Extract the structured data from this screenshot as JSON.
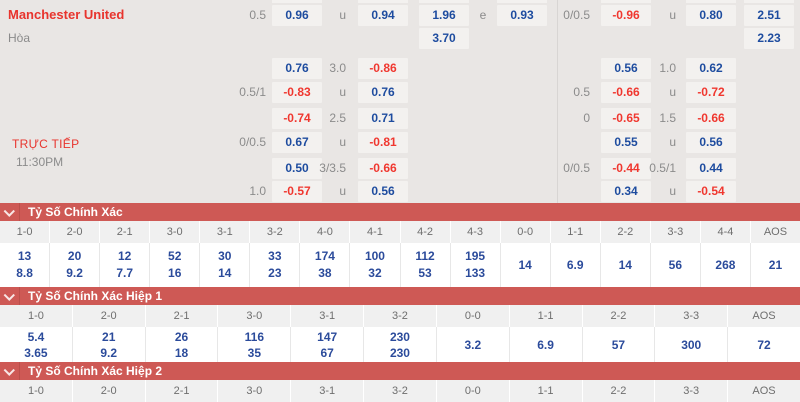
{
  "colors": {
    "blue": "#1e4c9f",
    "red": "#f0372f",
    "gray": "#8b8b8b",
    "banner_red": "#ce5955",
    "team_red": "#e8342d",
    "cell_bg": "#f3f1ef",
    "panel_bg": "#e9e6e4",
    "score_blue": "#2b4b9b"
  },
  "match": {
    "home_team": "Manchester United",
    "draw_label": "Hòa",
    "live_label": "TRỰC TIẾP",
    "start_time": "11:30PM"
  },
  "icons": {
    "banner_icon": "chevron-down-icon"
  },
  "odds": {
    "top_sliver_cols": [
      "c1",
      "c2",
      "c3",
      "c4",
      "c5",
      "c6",
      "c7"
    ],
    "rows": [
      {
        "cells": [
          {
            "col": "h1",
            "text": "0.5",
            "style": "gray"
          },
          {
            "col": "c1",
            "text": "0.96",
            "style": "blue"
          },
          {
            "col": "h2",
            "text": "u",
            "style": "gray"
          },
          {
            "col": "c2",
            "text": "0.94",
            "style": "blue"
          },
          {
            "col": "c3",
            "text": "1.96",
            "style": "blue"
          },
          {
            "col": "e",
            "text": "e",
            "style": "gray"
          },
          {
            "col": "c4",
            "text": "0.93",
            "style": "blue"
          },
          {
            "col": "h3",
            "text": "0/0.5",
            "style": "gray"
          },
          {
            "col": "c5",
            "text": "-0.96",
            "style": "red"
          },
          {
            "col": "h4",
            "text": "u",
            "style": "gray"
          },
          {
            "col": "c6",
            "text": "0.80",
            "style": "blue"
          },
          {
            "col": "c7",
            "text": "2.51",
            "style": "blue"
          }
        ]
      },
      {
        "cells": [
          {
            "col": "c3",
            "text": "3.70",
            "style": "blue"
          },
          {
            "col": "c7",
            "text": "2.23",
            "style": "blue"
          }
        ]
      },
      {
        "cells": [
          {
            "col": "c1",
            "text": "0.76",
            "style": "blue"
          },
          {
            "col": "h2",
            "text": "3.0",
            "style": "gray"
          },
          {
            "col": "c2",
            "text": "-0.86",
            "style": "red"
          },
          {
            "col": "c5",
            "text": "0.56",
            "style": "blue"
          },
          {
            "col": "h4",
            "text": "1.0",
            "style": "gray"
          },
          {
            "col": "c6",
            "text": "0.62",
            "style": "blue"
          }
        ]
      },
      {
        "cells": [
          {
            "col": "h1",
            "text": "0.5/1",
            "style": "gray"
          },
          {
            "col": "c1",
            "text": "-0.83",
            "style": "red"
          },
          {
            "col": "h2",
            "text": "u",
            "style": "gray"
          },
          {
            "col": "c2",
            "text": "0.76",
            "style": "blue"
          },
          {
            "col": "h3",
            "text": "0.5",
            "style": "gray"
          },
          {
            "col": "c5",
            "text": "-0.66",
            "style": "red"
          },
          {
            "col": "h4",
            "text": "u",
            "style": "gray"
          },
          {
            "col": "c6",
            "text": "-0.72",
            "style": "red"
          }
        ]
      },
      {
        "cells": [
          {
            "col": "c1",
            "text": "-0.74",
            "style": "red"
          },
          {
            "col": "h2",
            "text": "2.5",
            "style": "gray"
          },
          {
            "col": "c2",
            "text": "0.71",
            "style": "blue"
          },
          {
            "col": "h3",
            "text": "0",
            "style": "gray"
          },
          {
            "col": "c5",
            "text": "-0.65",
            "style": "red"
          },
          {
            "col": "h4",
            "text": "1.5",
            "style": "gray"
          },
          {
            "col": "c6",
            "text": "-0.66",
            "style": "red"
          }
        ]
      },
      {
        "cells": [
          {
            "col": "h1",
            "text": "0/0.5",
            "style": "gray"
          },
          {
            "col": "c1",
            "text": "0.67",
            "style": "blue"
          },
          {
            "col": "h2",
            "text": "u",
            "style": "gray"
          },
          {
            "col": "c2",
            "text": "-0.81",
            "style": "red"
          },
          {
            "col": "c5",
            "text": "0.55",
            "style": "blue"
          },
          {
            "col": "h4",
            "text": "u",
            "style": "gray"
          },
          {
            "col": "c6",
            "text": "0.56",
            "style": "blue"
          }
        ]
      },
      {
        "cells": [
          {
            "col": "c1",
            "text": "0.50",
            "style": "blue"
          },
          {
            "col": "h2",
            "text": "3/3.5",
            "style": "gray"
          },
          {
            "col": "c2",
            "text": "-0.66",
            "style": "red"
          },
          {
            "col": "h3",
            "text": "0/0.5",
            "style": "gray"
          },
          {
            "col": "c5",
            "text": "-0.44",
            "style": "red"
          },
          {
            "col": "h4",
            "text": "0.5/1",
            "style": "gray"
          },
          {
            "col": "c6",
            "text": "0.44",
            "style": "blue"
          }
        ]
      },
      {
        "cells": [
          {
            "col": "h1",
            "text": "1.0",
            "style": "gray"
          },
          {
            "col": "c1",
            "text": "-0.57",
            "style": "red"
          },
          {
            "col": "h2",
            "text": "u",
            "style": "gray"
          },
          {
            "col": "c2",
            "text": "0.56",
            "style": "blue"
          },
          {
            "col": "c5",
            "text": "0.34",
            "style": "blue"
          },
          {
            "col": "h4",
            "text": "u",
            "style": "gray"
          },
          {
            "col": "c6",
            "text": "-0.54",
            "style": "red"
          }
        ]
      }
    ]
  },
  "score_sections": [
    {
      "title": "Tỷ Số Chính Xác",
      "columns": [
        "1-0",
        "2-0",
        "2-1",
        "3-0",
        "3-1",
        "3-2",
        "4-0",
        "4-1",
        "4-2",
        "4-3",
        "0-0",
        "1-1",
        "2-2",
        "3-3",
        "4-4",
        "AOS"
      ],
      "values": [
        [
          "13",
          "8.8"
        ],
        [
          "20",
          "9.2"
        ],
        [
          "12",
          "7.7"
        ],
        [
          "52",
          "16"
        ],
        [
          "30",
          "14"
        ],
        [
          "33",
          "23"
        ],
        [
          "174",
          "38"
        ],
        [
          "100",
          "32"
        ],
        [
          "112",
          "53"
        ],
        [
          "195",
          "133"
        ],
        [
          "14"
        ],
        [
          "6.9"
        ],
        [
          "14"
        ],
        [
          "56"
        ],
        [
          "268"
        ],
        [
          "21"
        ]
      ]
    },
    {
      "title": "Tỷ Số Chính Xác Hiệp 1",
      "columns": [
        "1-0",
        "2-0",
        "2-1",
        "3-0",
        "3-1",
        "3-2",
        "0-0",
        "1-1",
        "2-2",
        "3-3",
        "AOS"
      ],
      "values": [
        [
          "5.4",
          "3.65"
        ],
        [
          "21",
          "9.2"
        ],
        [
          "26",
          "18"
        ],
        [
          "116",
          "35"
        ],
        [
          "147",
          "67"
        ],
        [
          "230",
          "230"
        ],
        [
          "3.2"
        ],
        [
          "6.9"
        ],
        [
          "57"
        ],
        [
          "300"
        ],
        [
          "72"
        ]
      ]
    },
    {
      "title": "Tỷ Số Chính Xác Hiệp 2",
      "columns": [
        "1-0",
        "2-0",
        "2-1",
        "3-0",
        "3-1",
        "3-2",
        "0-0",
        "1-1",
        "2-2",
        "3-3",
        "AOS"
      ],
      "values": []
    }
  ]
}
